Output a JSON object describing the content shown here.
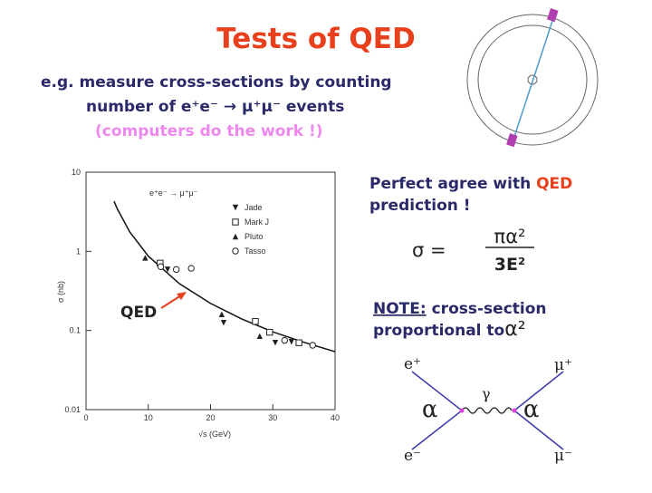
{
  "title": "Tests of QED",
  "intro": {
    "line1": "e.g. measure cross-sections by counting",
    "line2": "number of  e⁺e⁻ → μ⁺μ⁻ events",
    "line3": "(computers do the work !)"
  },
  "agreement": {
    "text": "Perfect agree with",
    "highlight": "QED",
    "text2": "prediction !"
  },
  "formula": {
    "lhs": "σ =",
    "numerator": "πα²",
    "denominator": "3E²"
  },
  "note": {
    "label": "NOTE:",
    "text": "cross-section",
    "text2": "proportional to",
    "symbol": "α²"
  },
  "feynman": {
    "e_plus": "e⁺",
    "mu_plus": "μ⁺",
    "e_minus": "e⁻",
    "mu_minus": "μ⁻",
    "gamma": "γ",
    "alpha_left": "α",
    "alpha_right": "α"
  },
  "plot_label": "QED",
  "chart_data": {
    "type": "scatter",
    "legend_title": "e⁺e⁻ → μ⁺μ⁻",
    "x_label": "√s (GeV)",
    "y_label": "σ (nb)",
    "xlim": [
      0,
      40
    ],
    "ylim": [
      0.01,
      10
    ],
    "log_y": true,
    "xticks": [
      0,
      10,
      20,
      30,
      40
    ],
    "yticks": [
      0.01,
      0.1,
      1,
      10
    ],
    "series": [
      {
        "name": "Jade",
        "marker": "down-triangle",
        "color": "#222222",
        "x": [
          13.1,
          22.1,
          30.4,
          33
        ],
        "values": [
          0.59,
          0.125,
          0.07,
          0.072
        ]
      },
      {
        "name": "Mark J",
        "marker": "open-square",
        "color": "#222222",
        "x": [
          11.9,
          27.2,
          29.5,
          34.2
        ],
        "values": [
          0.71,
          0.13,
          0.095,
          0.07
        ]
      },
      {
        "name": "Pluto",
        "marker": "up-triangle",
        "color": "#222222",
        "x": [
          9.5,
          21.8,
          27.9
        ],
        "values": [
          0.83,
          0.16,
          0.085
        ]
      },
      {
        "name": "Tasso",
        "marker": "open-circle",
        "color": "#222222",
        "x": [
          12,
          14.5,
          16.9,
          31.9,
          36.4
        ],
        "values": [
          0.64,
          0.59,
          0.61,
          0.075,
          0.065
        ]
      }
    ],
    "curve": {
      "color": "#111111",
      "x": [
        4.5,
        5,
        7,
        10,
        15,
        20,
        25,
        30,
        35,
        40
      ],
      "values": [
        4.29,
        3.47,
        1.77,
        0.87,
        0.39,
        0.22,
        0.14,
        0.096,
        0.071,
        0.054
      ]
    }
  }
}
